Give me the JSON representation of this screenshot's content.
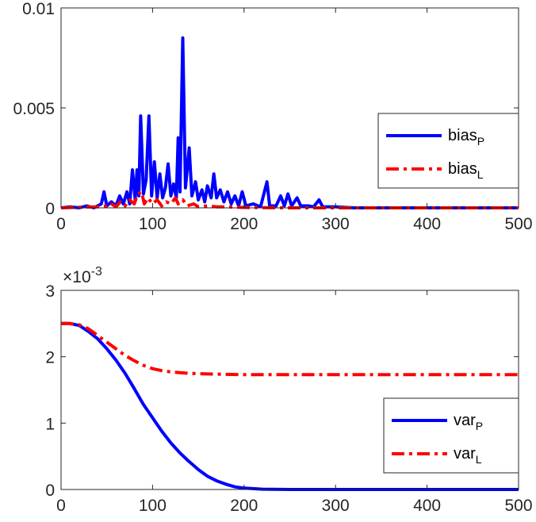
{
  "chart_data": [
    {
      "type": "line",
      "xlim": [
        0,
        500
      ],
      "ylim": [
        0,
        0.01
      ],
      "x_ticks": [
        "0",
        "100",
        "200",
        "300",
        "400",
        "500"
      ],
      "y_ticks": [
        "0",
        "0.005",
        "0.01"
      ],
      "y_tick_values": [
        0,
        0.005,
        0.01
      ],
      "grid": false,
      "legend_position": "right",
      "series": [
        {
          "name": "bias",
          "name_subscript": "P",
          "color": "#0000ff",
          "style": "solid",
          "points": [
            [
              0,
              0
            ],
            [
              10,
              5e-05
            ],
            [
              20,
              0
            ],
            [
              28,
              0.0001
            ],
            [
              36,
              0
            ],
            [
              44,
              0.0002
            ],
            [
              47,
              0.0008
            ],
            [
              50,
              0.0001
            ],
            [
              55,
              0.0003
            ],
            [
              60,
              0.0001
            ],
            [
              64,
              0.0006
            ],
            [
              68,
              0.0002
            ],
            [
              72,
              0.0008
            ],
            [
              75,
              0.0002
            ],
            [
              78,
              0.0019
            ],
            [
              81,
              0.0004
            ],
            [
              83,
              0.0019
            ],
            [
              85,
              0.0006
            ],
            [
              87,
              0.0046
            ],
            [
              90,
              0.0007
            ],
            [
              93,
              0.0014
            ],
            [
              96,
              0.0046
            ],
            [
              99,
              0.0006
            ],
            [
              102,
              0.0023
            ],
            [
              105,
              0.0005
            ],
            [
              108,
              0.0017
            ],
            [
              111,
              0.0005
            ],
            [
              114,
              0.001
            ],
            [
              117,
              0.0022
            ],
            [
              120,
              0.0006
            ],
            [
              123,
              0.0012
            ],
            [
              126,
              0.0005
            ],
            [
              128,
              0.0035
            ],
            [
              130,
              0.0008
            ],
            [
              133,
              0.0085
            ],
            [
              136,
              0.001
            ],
            [
              140,
              0.003
            ],
            [
              143,
              0.0006
            ],
            [
              147,
              0.0013
            ],
            [
              150,
              0.0004
            ],
            [
              154,
              0.0009
            ],
            [
              157,
              0.0003
            ],
            [
              160,
              0.0011
            ],
            [
              164,
              0.0005
            ],
            [
              167,
              0.0017
            ],
            [
              170,
              0.0005
            ],
            [
              174,
              0.0009
            ],
            [
              178,
              0.0003
            ],
            [
              182,
              0.0008
            ],
            [
              186,
              0.0002
            ],
            [
              190,
              0.0006
            ],
            [
              194,
              0.0001
            ],
            [
              198,
              0.0008
            ],
            [
              202,
              0.0001
            ],
            [
              210,
              0.0002
            ],
            [
              218,
              5e-05
            ],
            [
              225,
              0.0013
            ],
            [
              228,
              0.0001
            ],
            [
              235,
              0.0001
            ],
            [
              240,
              0.0006
            ],
            [
              244,
              0.0001
            ],
            [
              248,
              0.0007
            ],
            [
              252,
              0.0001
            ],
            [
              258,
              0.0005
            ],
            [
              262,
              0.0001
            ],
            [
              270,
              0.0001
            ],
            [
              276,
              5e-05
            ],
            [
              282,
              0.0004
            ],
            [
              286,
              5e-05
            ],
            [
              300,
              5e-05
            ],
            [
              320,
              0
            ],
            [
              360,
              0
            ],
            [
              400,
              0
            ],
            [
              450,
              0
            ],
            [
              500,
              0
            ]
          ]
        },
        {
          "name": "bias",
          "name_subscript": "L",
          "color": "#ff0000",
          "style": "dashdot",
          "points": [
            [
              0,
              0
            ],
            [
              20,
              3e-05
            ],
            [
              40,
              5e-05
            ],
            [
              50,
              0.0001
            ],
            [
              55,
              0.0002
            ],
            [
              60,
              5e-05
            ],
            [
              65,
              0.0003
            ],
            [
              70,
              0.0001
            ],
            [
              75,
              0.0004
            ],
            [
              80,
              0.0002
            ],
            [
              84,
              0.0007
            ],
            [
              88,
              0.0008
            ],
            [
              91,
              0.0002
            ],
            [
              95,
              0.0005
            ],
            [
              100,
              0.0002
            ],
            [
              105,
              0.0004
            ],
            [
              110,
              0.0001
            ],
            [
              115,
              0.0003
            ],
            [
              120,
              0.0002
            ],
            [
              125,
              0.0005
            ],
            [
              128,
              0.0002
            ],
            [
              133,
              0.0004
            ],
            [
              138,
              0.0001
            ],
            [
              145,
              0.0002
            ],
            [
              150,
              5e-05
            ],
            [
              160,
              0.0001
            ],
            [
              170,
              5e-05
            ],
            [
              180,
              5e-05
            ],
            [
              200,
              2e-05
            ],
            [
              250,
              0
            ],
            [
              300,
              0
            ],
            [
              400,
              0
            ],
            [
              500,
              0
            ]
          ]
        }
      ]
    },
    {
      "type": "line",
      "xlim": [
        0,
        500
      ],
      "ylim": [
        0,
        0.003
      ],
      "x_ticks": [
        "0",
        "100",
        "200",
        "300",
        "400",
        "500"
      ],
      "y_ticks": [
        "0",
        "1",
        "2",
        "3"
      ],
      "y_tick_values": [
        0,
        0.001,
        0.002,
        0.003
      ],
      "exponent_label": {
        "base": "×10",
        "power": "-3"
      },
      "grid": false,
      "legend_position": "bottom-right",
      "series": [
        {
          "name": "var",
          "name_subscript": "P",
          "color": "#0000ff",
          "style": "solid",
          "points": [
            [
              0,
              0.0025
            ],
            [
              10,
              0.0025
            ],
            [
              20,
              0.00247
            ],
            [
              30,
              0.00238
            ],
            [
              40,
              0.00227
            ],
            [
              50,
              0.00212
            ],
            [
              60,
              0.00195
            ],
            [
              70,
              0.00175
            ],
            [
              80,
              0.00152
            ],
            [
              90,
              0.00128
            ],
            [
              100,
              0.00108
            ],
            [
              110,
              0.00088
            ],
            [
              120,
              0.0007
            ],
            [
              130,
              0.00055
            ],
            [
              140,
              0.00042
            ],
            [
              150,
              0.0003
            ],
            [
              160,
              0.0002
            ],
            [
              170,
              0.00013
            ],
            [
              180,
              8e-05
            ],
            [
              190,
              4e-05
            ],
            [
              200,
              2e-05
            ],
            [
              220,
              5e-06
            ],
            [
              250,
              0
            ],
            [
              300,
              0
            ],
            [
              400,
              0
            ],
            [
              500,
              0
            ]
          ]
        },
        {
          "name": "var",
          "name_subscript": "L",
          "color": "#ff0000",
          "style": "dashdot",
          "points": [
            [
              0,
              0.0025
            ],
            [
              10,
              0.0025
            ],
            [
              20,
              0.00248
            ],
            [
              30,
              0.00242
            ],
            [
              40,
              0.00232
            ],
            [
              50,
              0.00222
            ],
            [
              60,
              0.00212
            ],
            [
              70,
              0.00202
            ],
            [
              80,
              0.00194
            ],
            [
              90,
              0.00187
            ],
            [
              100,
              0.00182
            ],
            [
              110,
              0.00179
            ],
            [
              120,
              0.00177
            ],
            [
              140,
              0.00175
            ],
            [
              160,
              0.00174
            ],
            [
              200,
              0.00173
            ],
            [
              300,
              0.00173
            ],
            [
              400,
              0.00173
            ],
            [
              500,
              0.00173
            ]
          ]
        }
      ]
    }
  ]
}
